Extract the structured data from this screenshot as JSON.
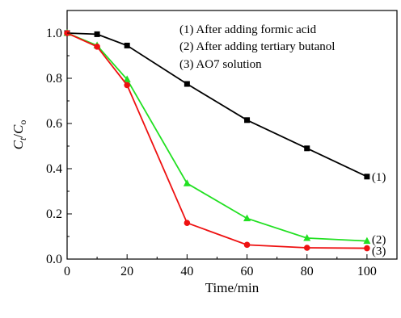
{
  "chart_data": {
    "type": "line",
    "x_values": [
      0,
      10,
      20,
      40,
      60,
      80,
      100
    ],
    "xlim": [
      0,
      110
    ],
    "ylim": [
      0.0,
      1.1
    ],
    "x_ticks": [
      "0",
      "20",
      "40",
      "60",
      "80",
      "100"
    ],
    "y_ticks": [
      "0.0",
      "0.2",
      "0.4",
      "0.6",
      "0.8",
      "1.0"
    ],
    "x_tick_values": [
      0,
      20,
      40,
      60,
      80,
      100
    ],
    "y_tick_values": [
      0.0,
      0.2,
      0.4,
      0.6,
      0.8,
      1.0
    ],
    "xlabel": "Time/min",
    "ylabel": {
      "main": "C",
      "sub_t": "t",
      "slash": "/",
      "main2": "C",
      "sub_o": "o"
    },
    "legend_position": "top-right",
    "legend": [
      "(1) After adding formic acid",
      "(2) After adding tertiary butanol",
      "(3) AO7 solution"
    ],
    "series": [
      {
        "label": "(1)",
        "marker": "square",
        "color": "#000000",
        "values": [
          1.0,
          0.995,
          0.945,
          0.775,
          0.615,
          0.49,
          0.365
        ]
      },
      {
        "label": "(2)",
        "marker": "triangle",
        "color": "#22e022",
        "values": [
          1.0,
          0.945,
          0.795,
          0.335,
          0.18,
          0.093,
          0.08
        ]
      },
      {
        "label": "(3)",
        "marker": "circle",
        "color": "#ee1111",
        "values": [
          1.0,
          0.94,
          0.77,
          0.16,
          0.063,
          0.05,
          0.048
        ]
      }
    ]
  }
}
